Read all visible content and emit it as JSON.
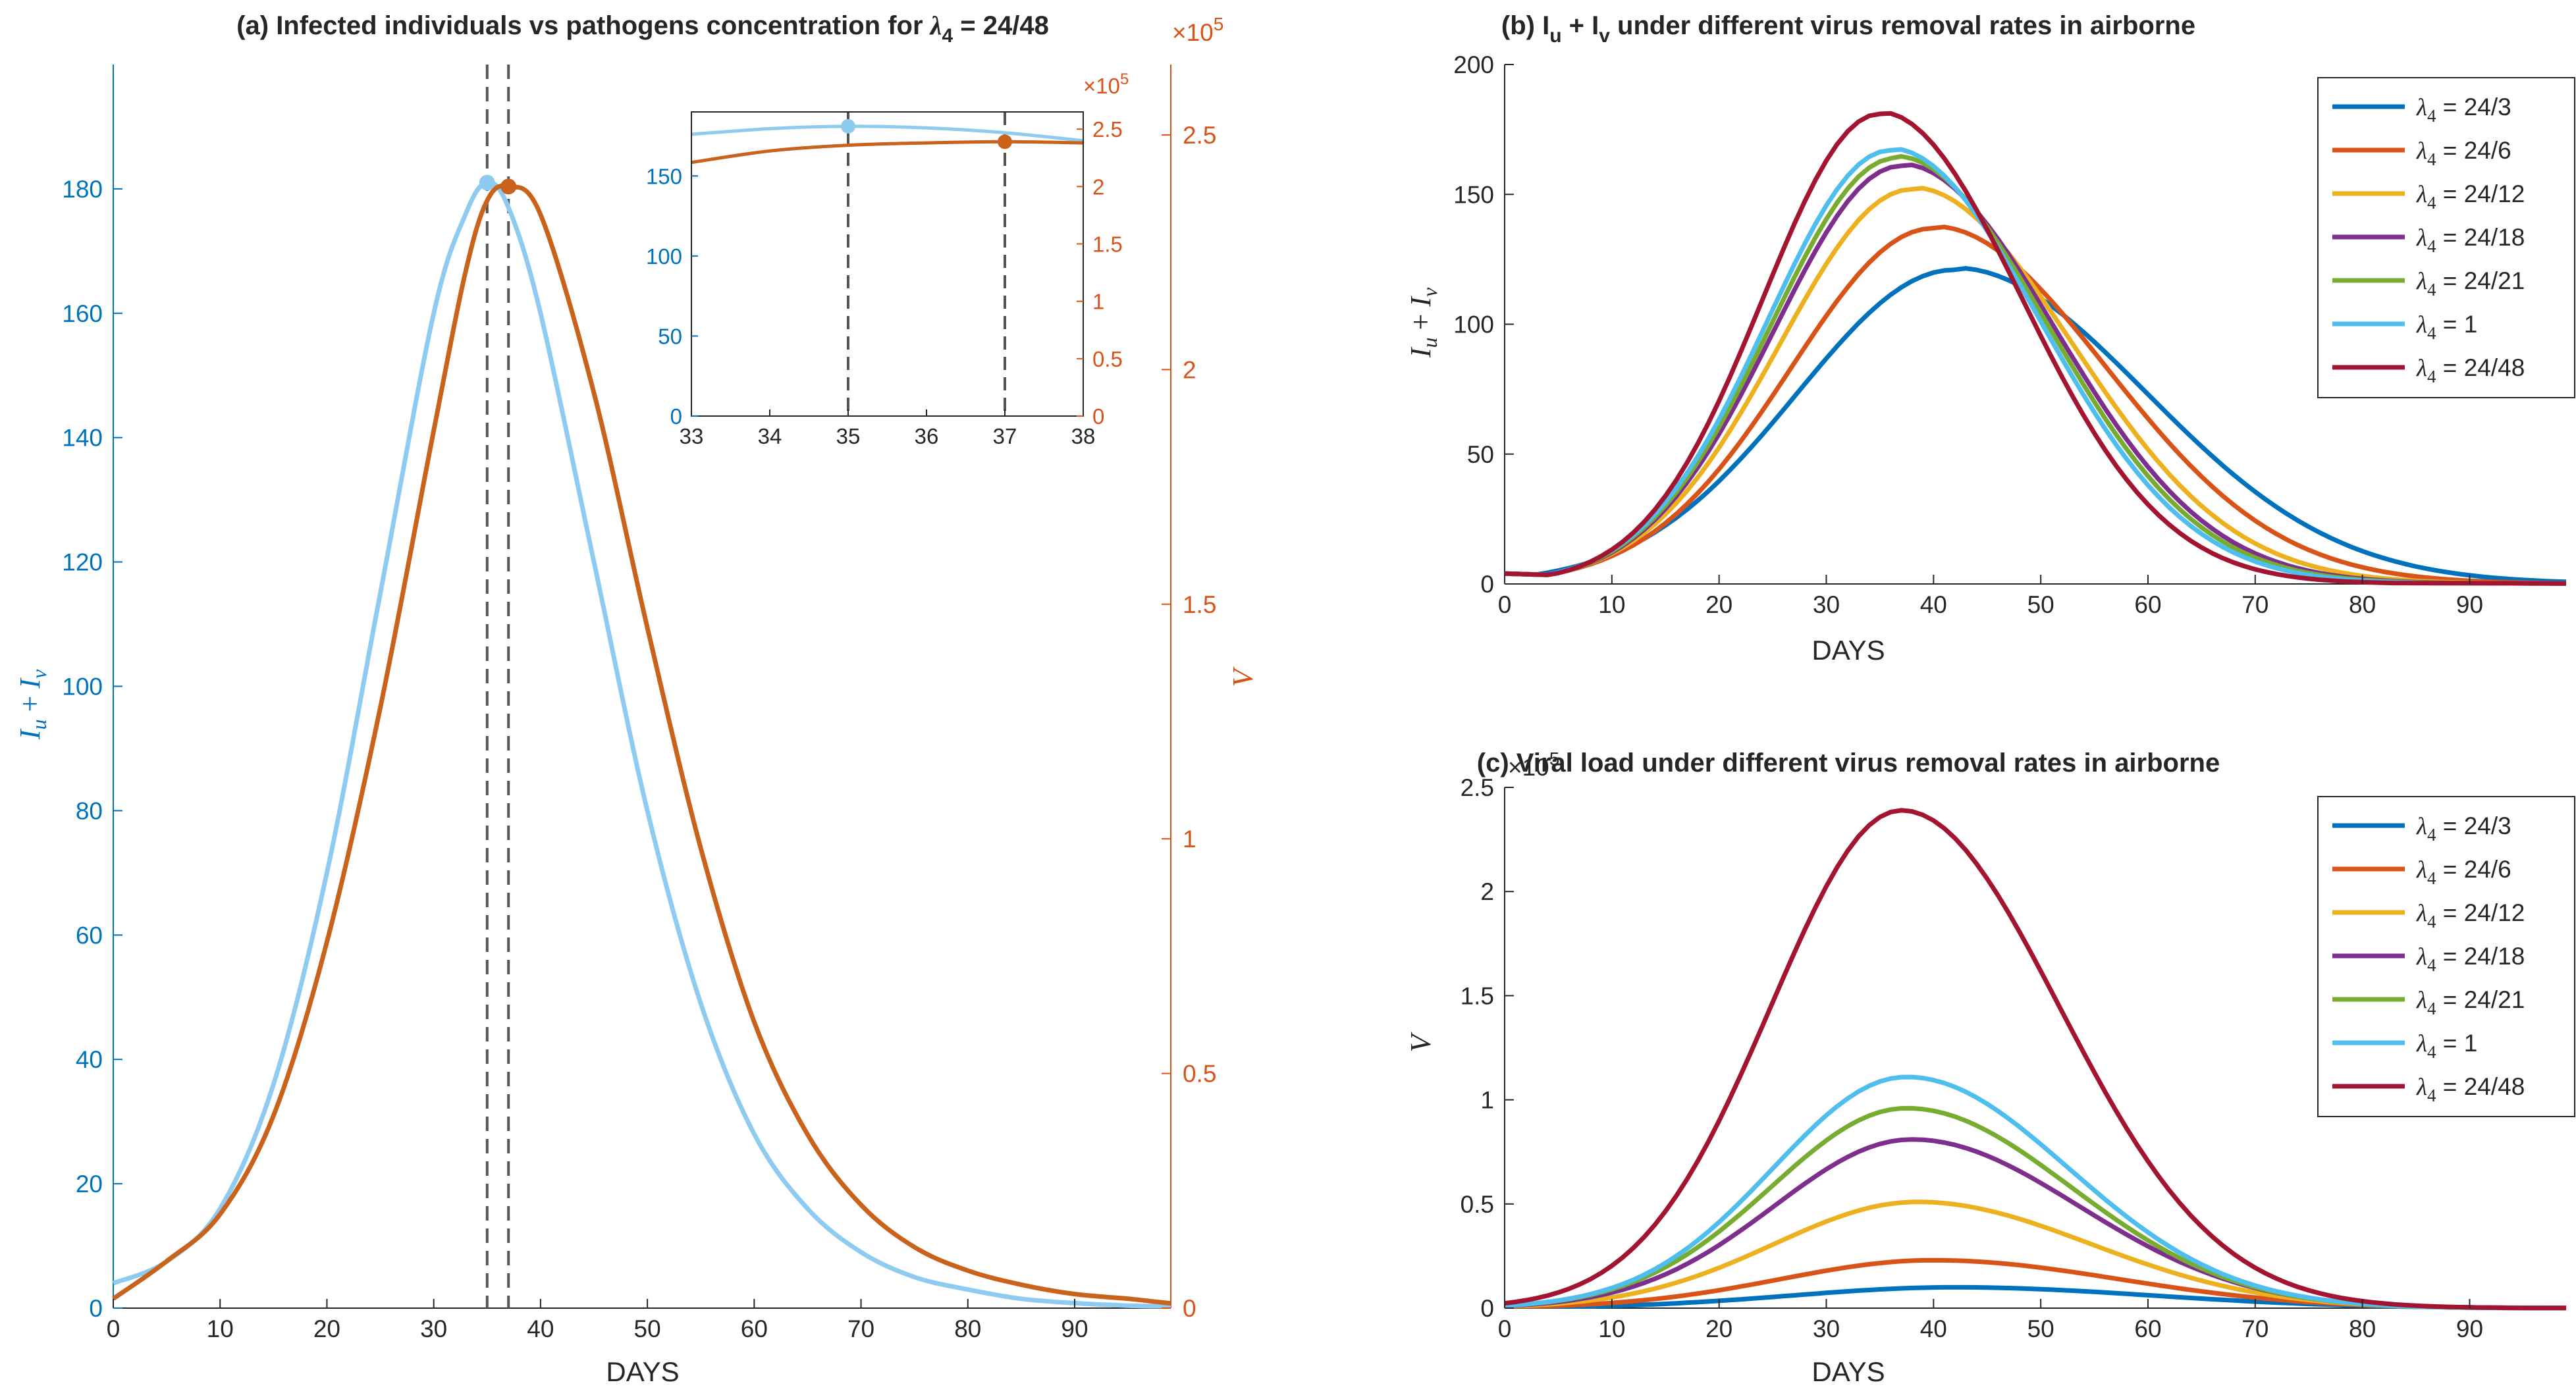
{
  "chart_data": [
    {
      "id": "a",
      "type": "line",
      "title": "(a) Infected individuals vs pathogens concentration for λ4 = 24/48",
      "title_parts": {
        "pre": "(a) Infected individuals vs pathogens concentration for ",
        "sym": "λ",
        "sub": "4",
        "post": " = 24/48"
      },
      "xlabel": "DAYS",
      "ylabel_left": "Iu + Iv",
      "ylabel_left_parts": {
        "a": "I",
        "a_sub": "u",
        "mid": " + ",
        "b": "I",
        "b_sub": "v"
      },
      "ylabel_right": "V",
      "xlim": [
        0,
        99
      ],
      "ylim_left": [
        0,
        200
      ],
      "ylim_right": [
        0,
        2.65
      ],
      "right_exponent": "×10",
      "right_exponent_power": "5",
      "x_ticks": [
        "0",
        "10",
        "20",
        "30",
        "40",
        "50",
        "60",
        "70",
        "80",
        "90"
      ],
      "y_left_ticks": [
        "0",
        "20",
        "40",
        "60",
        "80",
        "100",
        "120",
        "140",
        "160",
        "180"
      ],
      "y_right_ticks": [
        "0",
        "0.5",
        "1",
        "1.5",
        "2",
        "2.5"
      ],
      "colors": {
        "left": "#0072BD",
        "right": "#D95319",
        "infected": "#8FCBF0",
        "virus": "#C9621A",
        "vline": "#555555"
      },
      "series": [
        {
          "name": "Iu + Iv",
          "axis": "left",
          "color": "#8FCBF0",
          "x": [
            0,
            5,
            10,
            15,
            20,
            25,
            30,
            33,
            35,
            37,
            40,
            45,
            50,
            55,
            60,
            65,
            70,
            75,
            80,
            85,
            90,
            95,
            99
          ],
          "y": [
            4,
            7.5,
            16,
            36,
            70,
            115,
            160,
            176,
            181,
            177,
            160,
            120,
            80,
            49,
            28,
            16,
            9,
            5,
            3,
            1.5,
            0.8,
            0.4,
            0.3
          ]
        },
        {
          "name": "V",
          "axis": "right",
          "color": "#C9621A",
          "x": [
            0,
            5,
            10,
            15,
            20,
            25,
            30,
            33,
            35,
            37,
            40,
            45,
            50,
            55,
            60,
            65,
            70,
            75,
            80,
            85,
            90,
            95,
            99
          ],
          "y": [
            0.02,
            0.1,
            0.2,
            0.41,
            0.78,
            1.28,
            1.87,
            2.21,
            2.36,
            2.39,
            2.33,
            1.95,
            1.45,
            0.98,
            0.61,
            0.37,
            0.22,
            0.13,
            0.08,
            0.05,
            0.03,
            0.02,
            0.01
          ]
        }
      ],
      "vlines": [
        35,
        37
      ],
      "peaks": [
        {
          "series": "Iu + Iv",
          "x": 35,
          "y": 181
        },
        {
          "series": "V",
          "x": 37,
          "y": 2.39
        }
      ],
      "inset": {
        "xlim": [
          33,
          38
        ],
        "ylim_left": [
          0,
          190
        ],
        "ylim_right": [
          0,
          2.65
        ],
        "x_ticks": [
          "33",
          "34",
          "35",
          "36",
          "37",
          "38"
        ],
        "y_left_ticks": [
          "0",
          "50",
          "100",
          "150"
        ],
        "y_right_ticks": [
          "0",
          "0.5",
          "1",
          "1.5",
          "2",
          "2.5"
        ],
        "right_exponent": "×10",
        "right_exponent_power": "5",
        "series": [
          {
            "name": "Iu + Iv",
            "axis": "left",
            "x": [
              33,
              34,
              35,
              36,
              37,
              38
            ],
            "y": [
              176,
              179.5,
              181,
              180,
              177,
              172
            ]
          },
          {
            "name": "V",
            "axis": "right",
            "x": [
              33,
              34,
              35,
              36,
              37,
              38
            ],
            "y": [
              2.21,
              2.31,
              2.36,
              2.38,
              2.39,
              2.38
            ]
          }
        ],
        "vlines": [
          35,
          37
        ]
      }
    },
    {
      "id": "b",
      "type": "line",
      "title": "(b) Iu + Iv under different virus removal rates in airborne",
      "title_parts": {
        "pre": "(b) I",
        "s1": "u",
        "mid": " + I",
        "s2": "v",
        "post": " under different virus removal rates in airborne"
      },
      "xlabel": "DAYS",
      "ylabel": "Iu + Iv",
      "ylabel_parts": {
        "a": "I",
        "a_sub": "u",
        "mid": " + ",
        "b": "I",
        "b_sub": "v"
      },
      "xlim": [
        0,
        99
      ],
      "ylim": [
        0,
        200
      ],
      "x_ticks": [
        "0",
        "10",
        "20",
        "30",
        "40",
        "50",
        "60",
        "70",
        "80",
        "90"
      ],
      "y_ticks": [
        "0",
        "50",
        "100",
        "150",
        "200"
      ],
      "legend_position": "top-right",
      "series": [
        {
          "name": "λ4 = 24/3",
          "label": "24/3",
          "color": "#0072BD",
          "peak_x": 42,
          "peak": 121,
          "sigma": 15.5,
          "tail": 0.3
        },
        {
          "name": "λ4 = 24/6",
          "label": "24/6",
          "color": "#D95319",
          "peak_x": 40,
          "peak": 137,
          "sigma": 14,
          "tail": 0.3
        },
        {
          "name": "λ4 = 24/12",
          "label": "24/12",
          "color": "#EDB120",
          "peak_x": 38,
          "peak": 152,
          "sigma": 13,
          "tail": 0.3
        },
        {
          "name": "λ4 = 24/18",
          "label": "24/18",
          "color": "#7E2F8E",
          "peak_x": 37,
          "peak": 161,
          "sigma": 12.5,
          "tail": 0.3
        },
        {
          "name": "λ4 = 24/21",
          "label": "24/21",
          "color": "#77AC30",
          "peak_x": 36.5,
          "peak": 164,
          "sigma": 12.3,
          "tail": 0.3
        },
        {
          "name": "λ4 = 1",
          "label": "1",
          "color": "#4DBEEE",
          "peak_x": 36,
          "peak": 167,
          "sigma": 12.1,
          "tail": 0.3
        },
        {
          "name": "λ4 = 24/48",
          "label": "24/48",
          "color": "#A2142F",
          "peak_x": 35,
          "peak": 181,
          "sigma": 11.5,
          "tail": 0.3
        }
      ]
    },
    {
      "id": "c",
      "type": "line",
      "title": "(c) Viral load under different virus removal rates in airborne",
      "xlabel": "DAYS",
      "ylabel": "V",
      "xlim": [
        0,
        99
      ],
      "ylim": [
        0,
        2.5
      ],
      "y_exponent": "×10",
      "y_exponent_power": "5",
      "x_ticks": [
        "0",
        "10",
        "20",
        "30",
        "40",
        "50",
        "60",
        "70",
        "80",
        "90"
      ],
      "y_ticks": [
        "0",
        "0.5",
        "1",
        "1.5",
        "2",
        "2.5"
      ],
      "legend_position": "top-right",
      "series": [
        {
          "name": "λ4 = 24/3",
          "label": "24/3",
          "color": "#0072BD",
          "peak_x": 42,
          "peak": 0.1,
          "sigma": 16
        },
        {
          "name": "λ4 = 24/6",
          "label": "24/6",
          "color": "#D95319",
          "peak_x": 40,
          "peak": 0.23,
          "sigma": 15
        },
        {
          "name": "λ4 = 24/12",
          "label": "24/12",
          "color": "#EDB120",
          "peak_x": 38.5,
          "peak": 0.51,
          "sigma": 14
        },
        {
          "name": "λ4 = 24/18",
          "label": "24/18",
          "color": "#7E2F8E",
          "peak_x": 38,
          "peak": 0.81,
          "sigma": 13.5
        },
        {
          "name": "λ4 = 24/21",
          "label": "24/21",
          "color": "#77AC30",
          "peak_x": 37.5,
          "peak": 0.96,
          "sigma": 13.3
        },
        {
          "name": "λ4 = 1",
          "label": "1",
          "color": "#4DBEEE",
          "peak_x": 37.5,
          "peak": 1.11,
          "sigma": 13.1
        },
        {
          "name": "λ4 = 24/48",
          "label": "24/48",
          "color": "#A2142F",
          "peak_x": 37,
          "peak": 2.39,
          "sigma": 12.8
        }
      ]
    }
  ],
  "legend_symbol": "λ",
  "legend_sub": "4"
}
